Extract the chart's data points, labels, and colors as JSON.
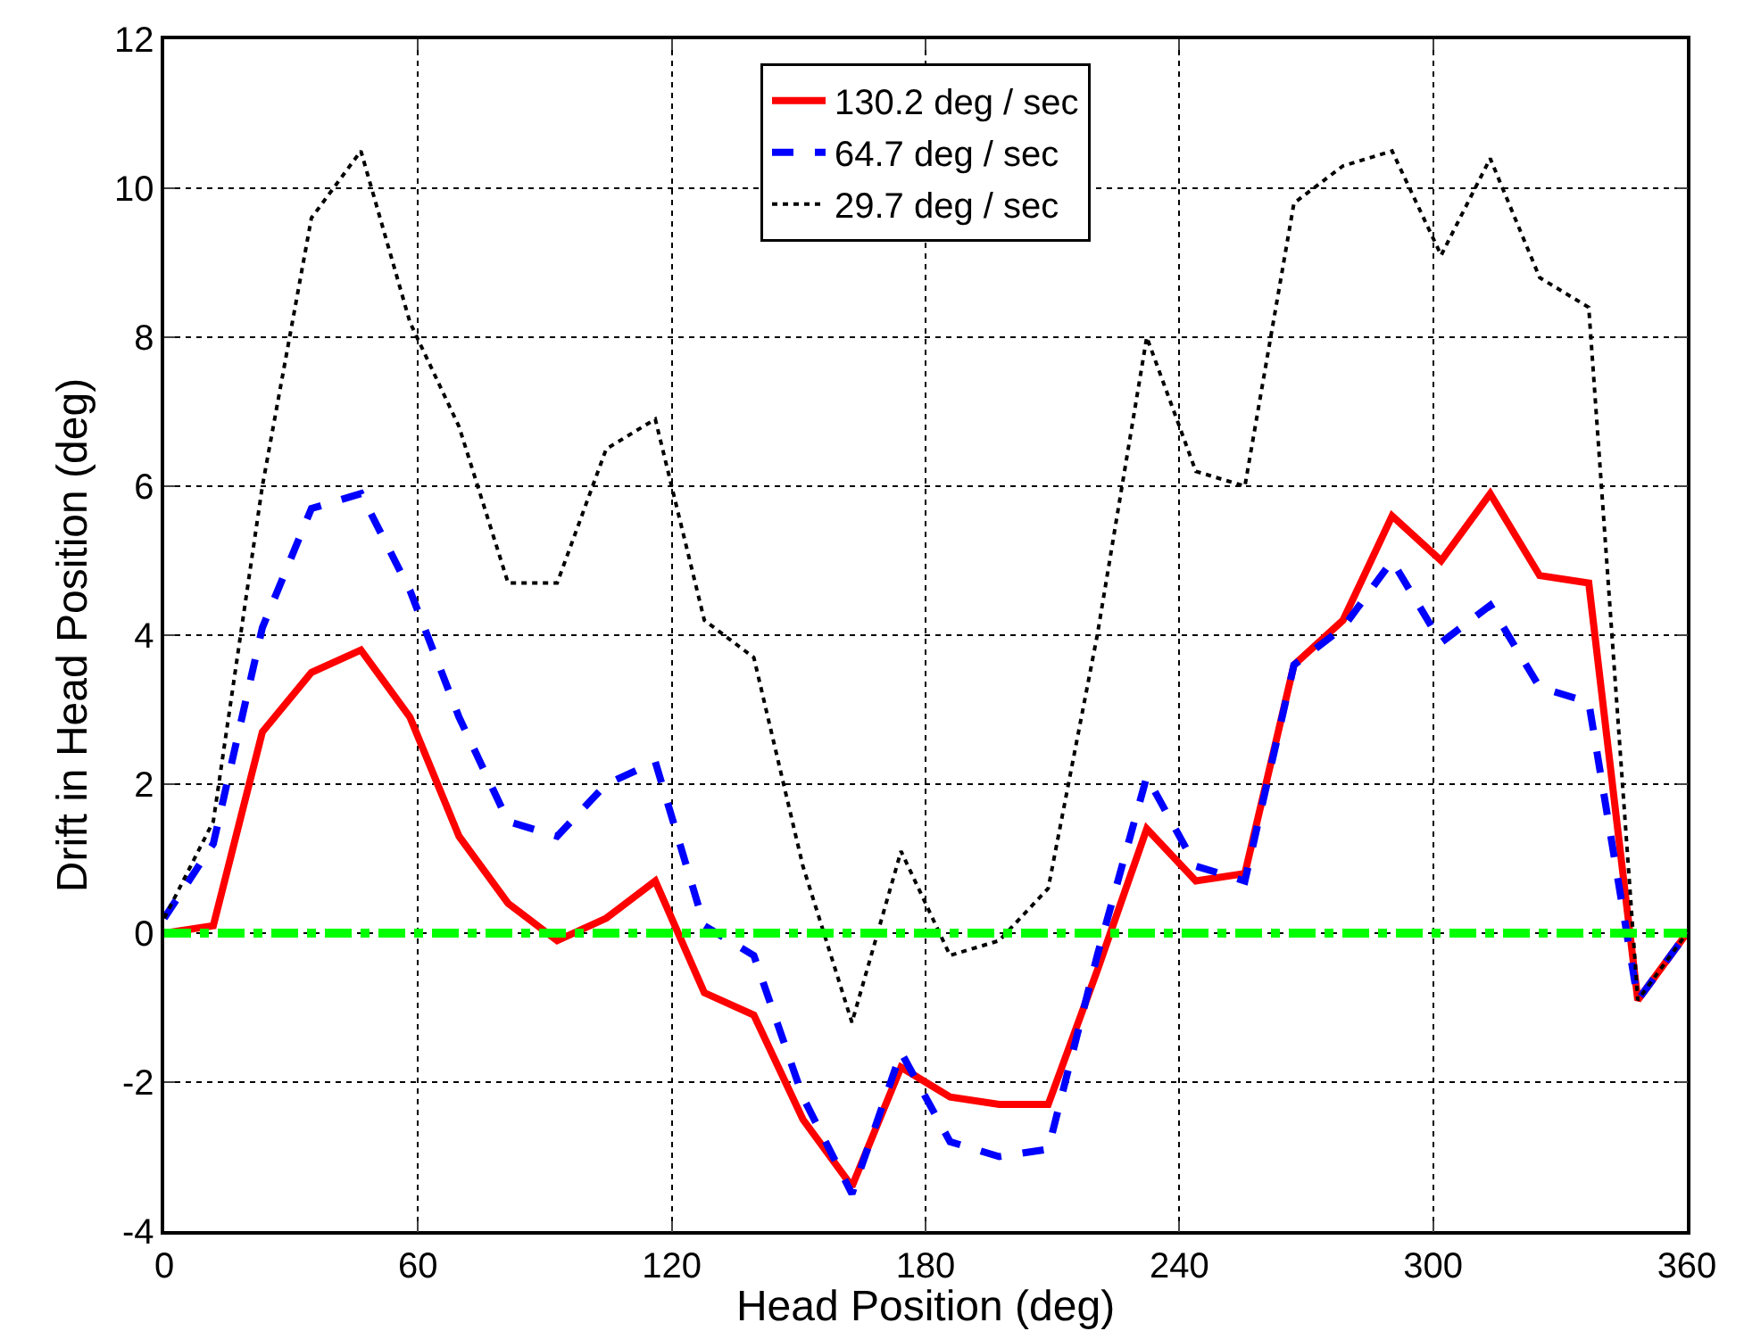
{
  "chart_data": {
    "type": "line",
    "xlabel": "Head Position (deg)",
    "ylabel": "Drift in Head Position (deg)",
    "xlim": [
      0,
      360
    ],
    "xticks": [
      0,
      60,
      120,
      180,
      240,
      300,
      360
    ],
    "ylim": [
      -4,
      12
    ],
    "yticks": [
      -4,
      -2,
      0,
      2,
      4,
      6,
      8,
      10,
      12
    ],
    "grid": true,
    "legend": "top",
    "marker": "none",
    "x": [
      0,
      11.6,
      23.2,
      34.8,
      46.5,
      58.1,
      69.7,
      81.3,
      92.9,
      104.5,
      116.1,
      127.7,
      139.4,
      151,
      162.6,
      174.2,
      185.8,
      197.4,
      209,
      220.6,
      232.3,
      243.9,
      255.5,
      267.1,
      278.7,
      290.3,
      301.9,
      313.5,
      325.2,
      336.8,
      348.4,
      360
    ],
    "series": [
      {
        "name": "130.2 deg / sec",
        "color": "#ff0000",
        "line_style": "solid",
        "values": [
          0,
          0.1,
          2.7,
          3.5,
          3.8,
          2.9,
          1.3,
          0.4,
          -0.1,
          0.2,
          0.7,
          -0.8,
          -1.1,
          -2.5,
          -3.4,
          -1.8,
          -2.2,
          -2.3,
          -2.3,
          -0.5,
          1.4,
          0.7,
          0.8,
          3.6,
          4.2,
          5.6,
          5.0,
          5.9,
          4.8,
          4.7,
          -0.9,
          0
        ]
      },
      {
        "name": "64.7 deg / sec",
        "color": "#0000ff",
        "line_style": "dashed",
        "values": [
          0.2,
          1.2,
          4.1,
          5.7,
          5.9,
          4.6,
          2.9,
          1.5,
          1.3,
          2.0,
          2.3,
          0.1,
          -0.3,
          -2.2,
          -3.5,
          -1.6,
          -2.8,
          -3.0,
          -2.9,
          -0.3,
          2.1,
          0.9,
          0.7,
          3.6,
          4.1,
          5.0,
          3.9,
          4.4,
          3.3,
          3.1,
          -0.9,
          0
        ]
      },
      {
        "name": "29.7 deg / sec",
        "color": "#000000",
        "line_style": "dotted",
        "values": [
          0.2,
          1.5,
          6.0,
          9.6,
          10.5,
          8.2,
          6.8,
          4.7,
          4.7,
          6.5,
          6.9,
          4.2,
          3.7,
          0.9,
          -1.2,
          1.1,
          -0.3,
          -0.1,
          0.6,
          4.0,
          8.0,
          6.2,
          6.0,
          9.8,
          10.3,
          10.5,
          9.1,
          10.4,
          8.8,
          8.4,
          -0.9,
          0
        ]
      }
    ],
    "ref_lines": [
      {
        "axis": "y",
        "value": 0,
        "color": "#00ff00",
        "line_style": "dashdot"
      }
    ]
  }
}
